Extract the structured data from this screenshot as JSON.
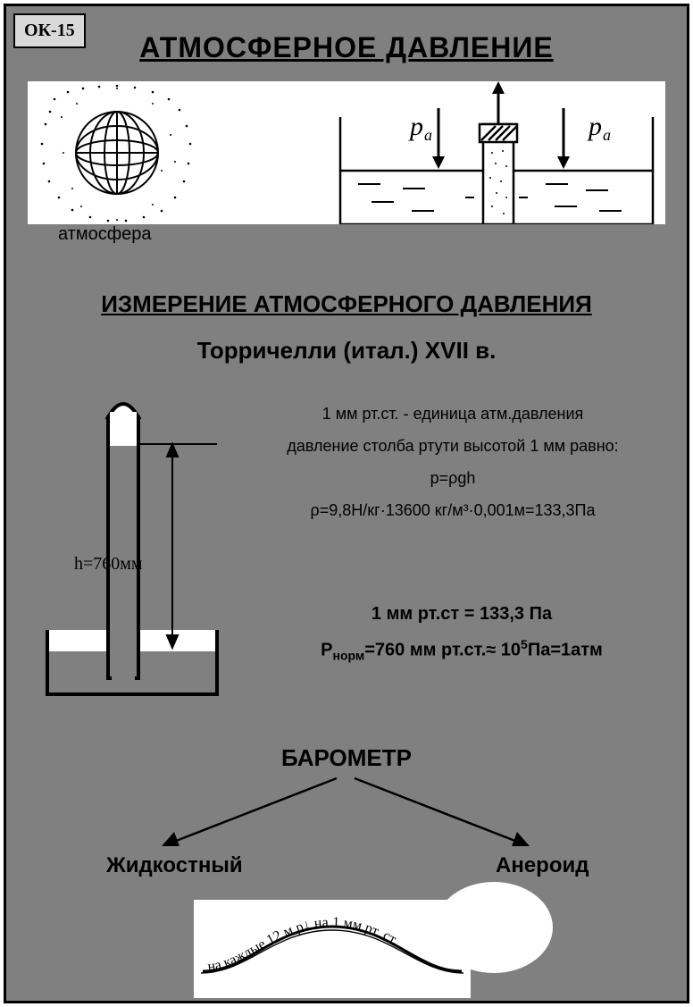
{
  "badge": "ОК-15",
  "title": "АТМОСФЕРНОЕ ДАВЛЕНИЕ",
  "top_illustration": {
    "left_caption": "атмосфера",
    "pressure_label": "pₐ",
    "globe": {
      "stroke": "#000000",
      "dot_color": "#000000"
    },
    "vessel": {
      "stroke": "#000000",
      "hatch_color": "#000000"
    }
  },
  "subtitle": "ИЗМЕРЕНИЕ АТМОСФЕРНОГО ДАВЛЕНИЯ",
  "author_line": "Торричелли  (итал.)  XVII в.",
  "torricelli_tube": {
    "height_label": "h=760мм",
    "tube_fill": "#ffffff",
    "vessel_fill": "#808080",
    "stroke": "#000000",
    "band_fill": "#ffffff"
  },
  "text_block": {
    "line1": "1 мм рт.ст. - единица атм.давления",
    "line2": "давление столба ртути высотой 1 мм равно:",
    "line3": "p=ρgh",
    "line4": "ρ=9,8Н/кг·13600 кг/м³·0,001м=133,3Па"
  },
  "equations": {
    "eq1": "1 мм рт.ст = 133,3 Па",
    "eq2_html": "P<sub>норм</sub>=760 мм рт.ст.≈ 10<sup>5</sup>Па=1атм"
  },
  "barometer": {
    "title": "БАРОМЕТР",
    "left": "Жидкостный",
    "right": "Анероид",
    "arrow_stroke": "#000000"
  },
  "wave": {
    "text_left": "на каждые 12 м p",
    "text_arrow": "↓",
    "text_right": "на 1 мм рт. ст.",
    "stroke": "#000000",
    "bg": "#ffffff"
  },
  "colors": {
    "page_bg": "#808080",
    "border": "#000000",
    "badge_bg": "#d9d9d9",
    "white": "#ffffff"
  },
  "fontsizes": {
    "title": 32,
    "subtitle": 26,
    "author": 26,
    "body": 18,
    "eq": 20,
    "baro_title": 26,
    "baro_leaf": 24,
    "badge": 20,
    "caption": 20
  }
}
